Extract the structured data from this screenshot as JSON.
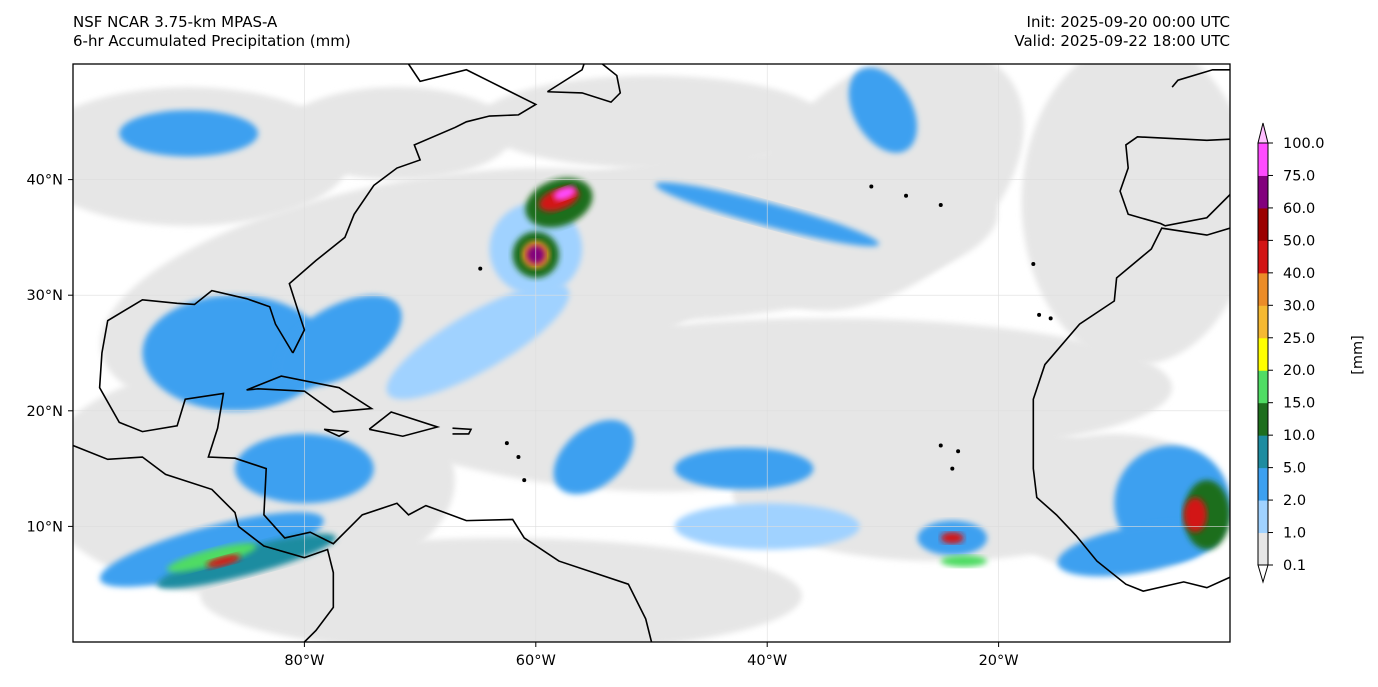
{
  "header": {
    "model": "NSF NCAR 3.75-km MPAS-A",
    "field": "6-hr Accumulated Precipitation (mm)",
    "init": "Init: 2025-09-20 00:00 UTC",
    "valid": "Valid: 2025-09-22 18:00 UTC"
  },
  "map": {
    "extent": {
      "lon": [
        -100,
        0
      ],
      "lat": [
        0,
        50
      ]
    },
    "lat_ticks": [
      {
        "value": 40,
        "label": "40°N"
      },
      {
        "value": 30,
        "label": "30°N"
      },
      {
        "value": 20,
        "label": "20°N"
      },
      {
        "value": 10,
        "label": "10°N"
      }
    ],
    "lon_ticks": [
      {
        "value": -80,
        "label": "80°W"
      },
      {
        "value": -60,
        "label": "60°W"
      },
      {
        "value": -40,
        "label": "40°W"
      },
      {
        "value": -20,
        "label": "20°W"
      }
    ]
  },
  "colorbar": {
    "unit_label": "[mm]",
    "levels": [
      "0.1",
      "1.0",
      "2.0",
      "5.0",
      "10.0",
      "15.0",
      "20.0",
      "25.0",
      "30.0",
      "40.0",
      "50.0",
      "60.0",
      "75.0",
      "100.0"
    ],
    "colors": [
      "#e6e6e6",
      "#a0d2ff",
      "#3ca0f0",
      "#1e8ca0",
      "#1e6e1e",
      "#50dc64",
      "#ffff00",
      "#f5b932",
      "#eb8c28",
      "#d21414",
      "#9b0000",
      "#82007d",
      "#ff4bff"
    ],
    "extend_low_color": "#ffffff",
    "extend_high_color": "#ffbeff"
  }
}
